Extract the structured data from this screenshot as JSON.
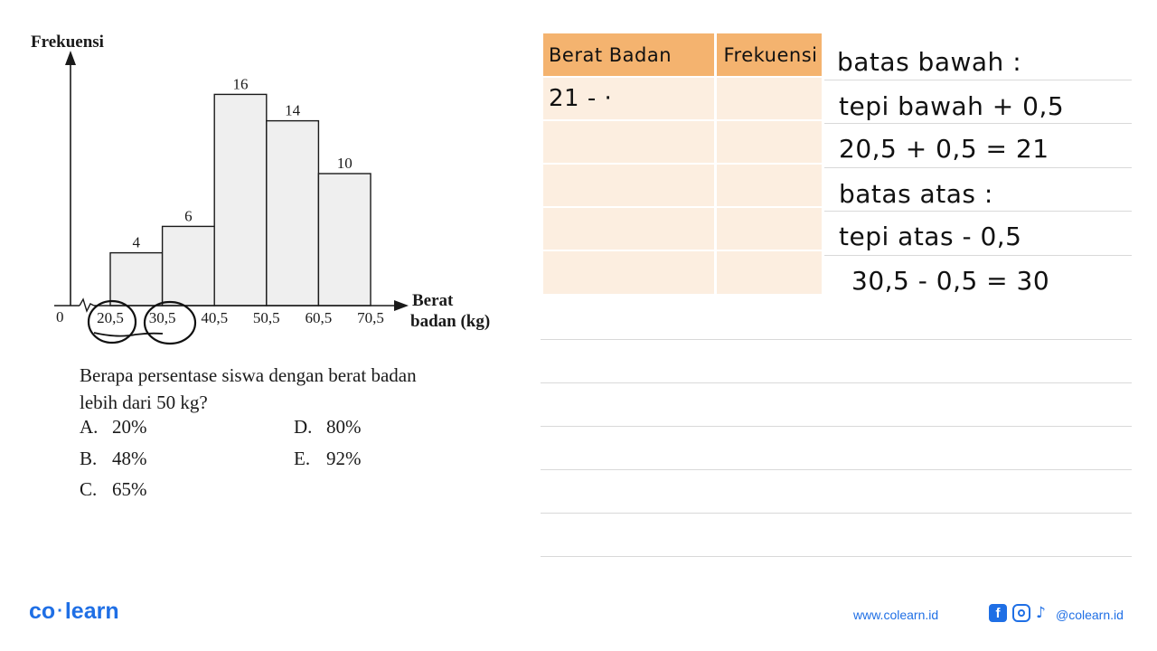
{
  "chart_data": {
    "type": "bar",
    "subtype": "histogram",
    "ylabel": "Frekuensi",
    "xlabel_line1": "Berat",
    "xlabel_line2": "badan (kg)",
    "origin_label": "0",
    "x_ticks": [
      "20,5",
      "30,5",
      "40,5",
      "50,5",
      "60,5",
      "70,5"
    ],
    "bins": [
      {
        "from": 20.5,
        "to": 30.5,
        "value": 4
      },
      {
        "from": 30.5,
        "to": 40.5,
        "value": 6
      },
      {
        "from": 40.5,
        "to": 50.5,
        "value": 16
      },
      {
        "from": 50.5,
        "to": 60.5,
        "value": 14
      },
      {
        "from": 60.5,
        "to": 70.5,
        "value": 10
      }
    ],
    "categories": [
      "20,5–30,5",
      "30,5–40,5",
      "40,5–50,5",
      "50,5–60,5",
      "60,5–70,5"
    ],
    "values": [
      4,
      6,
      16,
      14,
      10
    ],
    "circled_ticks": [
      "20,5",
      "30,5"
    ],
    "grid": false,
    "bar_fill": "#efefef"
  },
  "question": {
    "line1": "Berapa persentase siswa dengan berat badan",
    "line2": "lebih dari 50 kg?",
    "options": [
      {
        "letter": "A.",
        "text": "20%"
      },
      {
        "letter": "B.",
        "text": "48%"
      },
      {
        "letter": "C.",
        "text": "65%"
      },
      {
        "letter": "D.",
        "text": "80%"
      },
      {
        "letter": "E.",
        "text": "92%"
      }
    ]
  },
  "table": {
    "header": [
      "Berat Badan",
      "Frekuensi"
    ],
    "rows": [
      [
        "21   -   ·",
        ""
      ],
      [
        "",
        ""
      ],
      [
        "",
        ""
      ],
      [
        "",
        ""
      ],
      [
        "",
        ""
      ]
    ],
    "header_color": "#f4b36f",
    "row_color": "#fceee0"
  },
  "notes": [
    "batas bawah :",
    "tepi bawah  + 0,5",
    "20,5 + 0,5  =  21",
    "batas atas :",
    "tepi atas - 0,5",
    "30,5 - 0,5  =  30"
  ],
  "footer": {
    "logo_left": "co",
    "logo_dot": "·",
    "logo_right": "learn",
    "website": "www.colearn.id",
    "handle": "@colearn.id",
    "facebook_glyph": "f",
    "tiktok_glyph": "♪",
    "brand_color": "#1f6fe5"
  }
}
